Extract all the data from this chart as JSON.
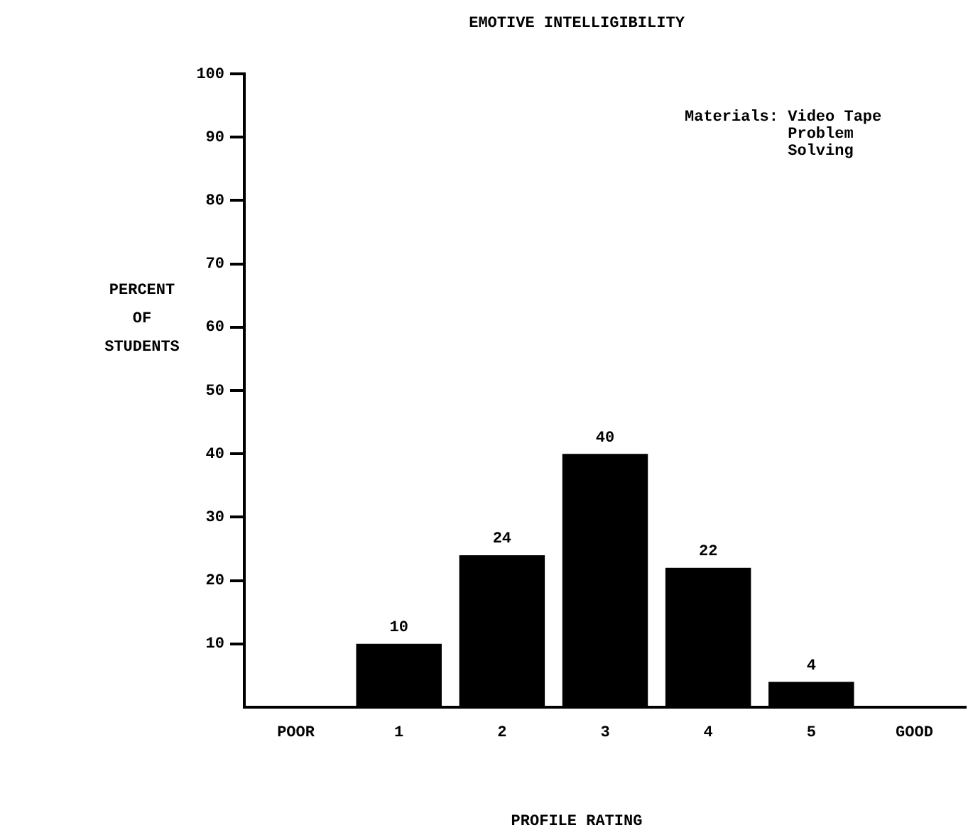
{
  "chart_data": {
    "type": "bar",
    "title": "EMOTIVE INTELLIGIBILITY",
    "xlabel": "PROFILE RATING",
    "ylabel": "PERCENT\nOF\nSTUDENTS",
    "categories": [
      "POOR",
      "1",
      "2",
      "3",
      "4",
      "5",
      "GOOD"
    ],
    "values": [
      null,
      10,
      24,
      40,
      22,
      4,
      null
    ],
    "color": "#000000",
    "ylim": [
      0,
      100
    ],
    "yticks": [
      10,
      20,
      30,
      40,
      50,
      60,
      70,
      80,
      90,
      100
    ],
    "grid": false,
    "legend": false,
    "data_labels": true,
    "annotations": [
      "Materials: Video Tape\nProblem\nSolving"
    ]
  }
}
